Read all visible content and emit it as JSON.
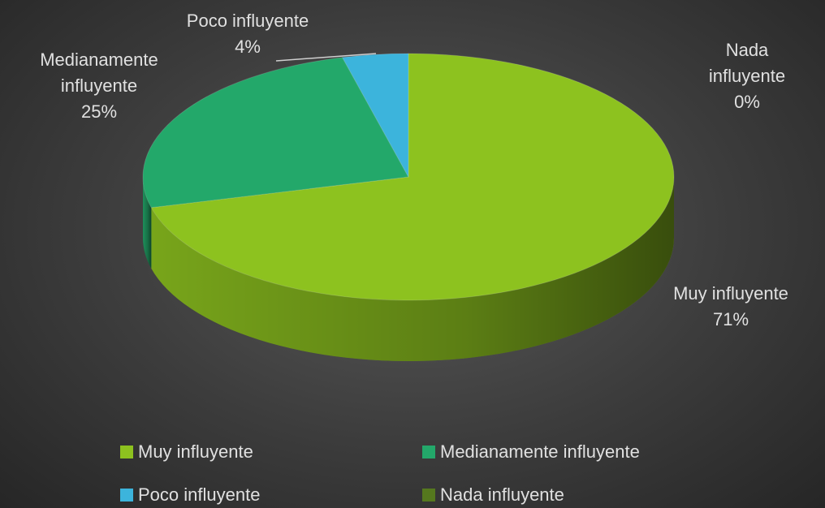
{
  "chart_data": {
    "type": "pie",
    "categories": [
      "Muy influyente",
      "Medianamente influyente",
      "Poco influyente",
      "Nada influyente"
    ],
    "values": [
      71,
      25,
      4,
      0
    ],
    "value_labels": [
      "71%",
      "25%",
      "4%",
      "0%"
    ],
    "colors": [
      "#8dc21f",
      "#23a86a",
      "#3cb4dc",
      "#55781e"
    ],
    "legend": "bottom"
  }
}
